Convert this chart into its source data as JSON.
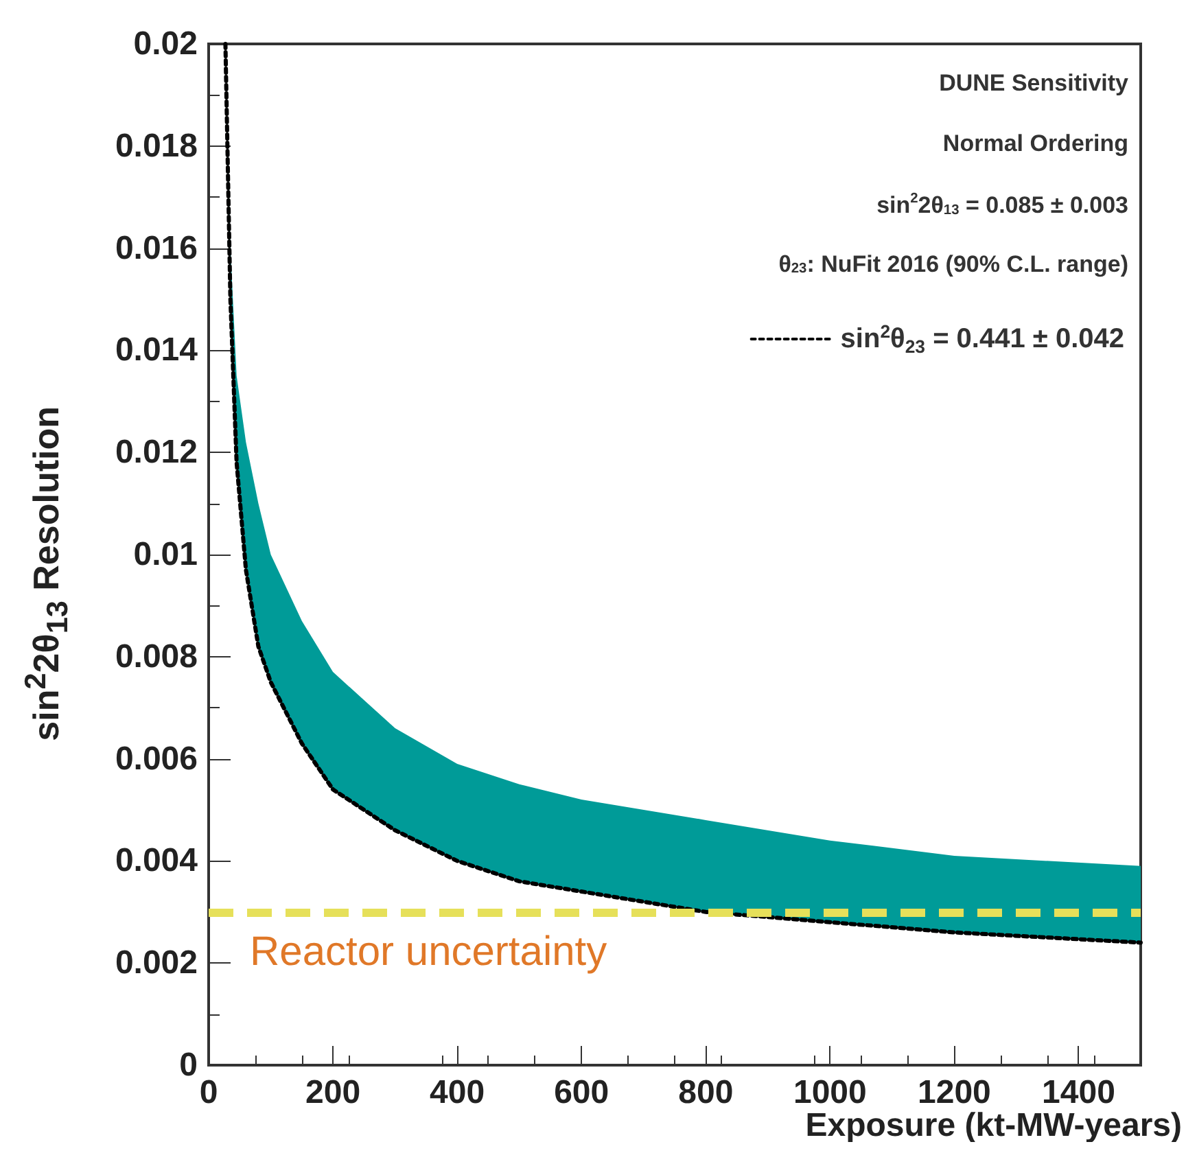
{
  "chart_data": {
    "type": "line",
    "xlabel": "Exposure (kt-MW-years)",
    "ylabel": "sin$^{2}$2θ$_{13}$ Resolution",
    "x": [
      27,
      35,
      45,
      60,
      80,
      100,
      150,
      200,
      300,
      400,
      500,
      600,
      800,
      1000,
      1200,
      1500
    ],
    "series": [
      {
        "name": "sin$^{2}$θ$_{23}$ = 0.441 ± 0.042",
        "color": "#000000",
        "line_style": "dotted",
        "values": [
          0.02,
          0.015,
          0.0118,
          0.0097,
          0.0082,
          0.0075,
          0.0063,
          0.0054,
          0.0046,
          0.004,
          0.0036,
          0.0034,
          0.003,
          0.0028,
          0.0026,
          0.0024
        ],
        "lower": [
          0.02,
          0.015,
          0.0118,
          0.0097,
          0.0082,
          0.0075,
          0.0063,
          0.0054,
          0.0046,
          0.004,
          0.0036,
          0.0034,
          0.003,
          0.0028,
          0.0026,
          0.0024
        ],
        "upper": [
          0.02,
          0.016,
          0.0135,
          0.0122,
          0.011,
          0.01,
          0.0087,
          0.0077,
          0.0066,
          0.0059,
          0.0055,
          0.0052,
          0.0048,
          0.0044,
          0.0041,
          0.0039
        ]
      }
    ],
    "marker": "none",
    "xlim": [
      0,
      1500
    ],
    "xticks": [
      0,
      200,
      400,
      600,
      800,
      1000,
      1200,
      1400
    ],
    "ylim": [
      0,
      0.02
    ],
    "yticks": [
      0,
      0.002,
      0.004,
      0.006,
      0.008,
      0.01,
      0.012,
      0.014,
      0.016,
      0.018,
      0.02
    ],
    "ref_lines": [
      {
        "axis": "y",
        "value": 0.003,
        "label": "Reactor uncertainty",
        "color": "#e6e05a",
        "line_style": "dashed"
      }
    ],
    "annotations": [
      "DUNE Sensitivity",
      "Normal Ordering",
      "sin$^{2}$2θ$_{13}$ = 0.085 ± 0.003",
      "θ$_{23}$: NuFit 2016 (90% C.L. range)"
    ],
    "legend": "top right"
  }
}
